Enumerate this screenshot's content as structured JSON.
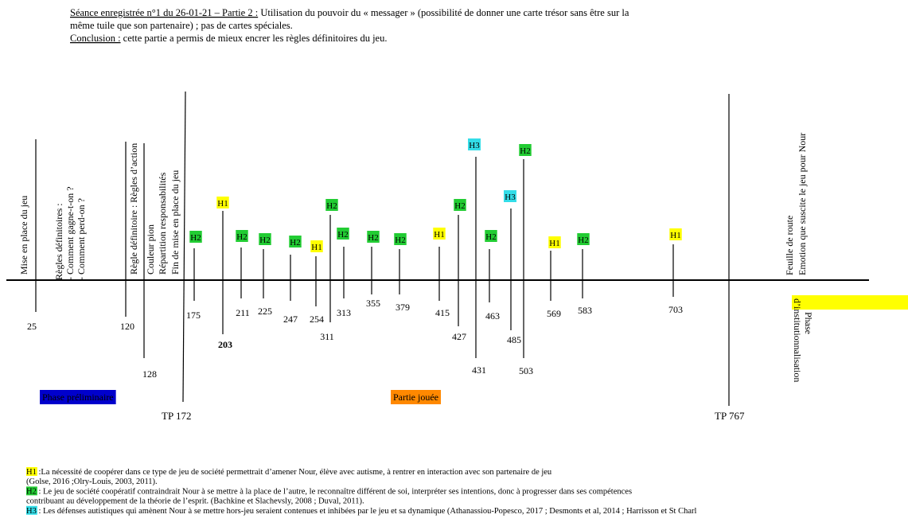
{
  "header": {
    "session_label": "Séance enregistrée n°1 du 26-01-21 – Partie 2 :",
    "session_text_lines": [
      " Utilisation du pouvoir du « messager » (possibilité de donner une carte trésor sans être sur la",
      "même tuile que son partenaire) ; pas de cartes spéciales."
    ],
    "conclusion_label": "Conclusion :",
    "conclusion_text": " cette partie a permis de mieux encrer les règles définitoires du jeu."
  },
  "timeline": {
    "markers": [
      "25",
      "120",
      "128",
      "175",
      "203",
      "211",
      "225",
      "247",
      "254",
      "311",
      "313",
      "355",
      "379",
      "415",
      "427",
      "463",
      "431",
      "485",
      "503",
      "569",
      "583",
      "703"
    ],
    "tags": [
      "H2",
      "H1",
      "H2",
      "H2",
      "H2",
      "H1",
      "H2",
      "H2",
      "H2",
      "H2",
      "H1",
      "H2",
      "H3",
      "H2",
      "H3",
      "H2",
      "H1",
      "H2",
      "H1"
    ],
    "tag_colors": {
      "H1": "#ffff00",
      "H2": "#22cc33",
      "H3": "#33dde8"
    },
    "rotated_labels": [
      [
        "Mise en place du jeu"
      ],
      [
        "Règles définitoires :",
        "- Comment gagne-t-on ?",
        "- Comment perd-on ?"
      ],
      [
        "Règle définitoire : Règles d’action"
      ],
      [
        "Couleur pion",
        "Répartition responsabilités",
        "Fin de mise en place du jeu"
      ],
      [
        "Feuille de route",
        "Emotion que suscite le jeu pour Nour"
      ]
    ],
    "institution_lines": [
      "Phase",
      "d’institutionnalisation"
    ],
    "phases": [
      {
        "label": "Phase préliminaire",
        "color": "#0000cc"
      },
      {
        "label": "Partie jouée",
        "color": "#ff8800"
      }
    ],
    "tp_labels": [
      "TP 172",
      "TP 767"
    ]
  },
  "legend": [
    {
      "tag": "H1",
      "lines": [
        " :La nécessité de coopérer dans ce type de jeu de société permettrait d’amener Nour, élève avec autisme, à rentrer en interaction avec son partenaire de jeu",
        "(Golse, 2016 ;Olry-Louis, 2003, 2011)."
      ]
    },
    {
      "tag": "H2",
      "lines": [
        " : Le jeu de société coopératif contraindrait Nour à se mettre à la place de l’autre, le reconnaître différent de soi, interpréter ses intentions, donc à progresser dans ses compétences",
        "contribuant au développement de la théorie de l’esprit. (Bachkine et Slachevsly, 2008 ; Duval, 2011)."
      ]
    },
    {
      "tag": "H3",
      "lines": [
        " : Les défenses autistiques qui amènent Nour à se mettre hors-jeu seraient contenues et inhibées par le jeu et sa dynamique (Athanassiou-Popesco, 2017 ; Desmonts et al, 2014 ; Harrisson et St Charl"
      ]
    }
  ]
}
